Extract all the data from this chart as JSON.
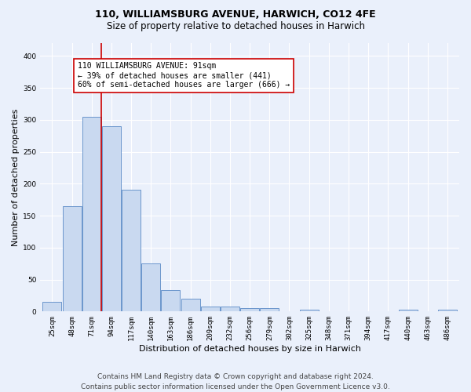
{
  "title": "110, WILLIAMSBURG AVENUE, HARWICH, CO12 4FE",
  "subtitle": "Size of property relative to detached houses in Harwich",
  "xlabel": "Distribution of detached houses by size in Harwich",
  "ylabel": "Number of detached properties",
  "bar_labels": [
    "25sqm",
    "48sqm",
    "71sqm",
    "94sqm",
    "117sqm",
    "140sqm",
    "163sqm",
    "186sqm",
    "209sqm",
    "232sqm",
    "256sqm",
    "279sqm",
    "302sqm",
    "325sqm",
    "348sqm",
    "371sqm",
    "394sqm",
    "417sqm",
    "440sqm",
    "463sqm",
    "486sqm"
  ],
  "bar_values": [
    15,
    165,
    305,
    290,
    190,
    75,
    33,
    20,
    8,
    8,
    5,
    5,
    0,
    3,
    0,
    0,
    0,
    0,
    3,
    0,
    3
  ],
  "bar_color": "#c9d9f0",
  "bar_edge_color": "#5a8ac6",
  "vline_color": "#cc0000",
  "vline_bin_index": 3,
  "annotation_text": "110 WILLIAMSBURG AVENUE: 91sqm\n← 39% of detached houses are smaller (441)\n60% of semi-detached houses are larger (666) →",
  "annotation_box_color": "#ffffff",
  "annotation_box_edge_color": "#cc0000",
  "ylim": [
    0,
    420
  ],
  "yticks": [
    0,
    50,
    100,
    150,
    200,
    250,
    300,
    350,
    400
  ],
  "footer": "Contains HM Land Registry data © Crown copyright and database right 2024.\nContains public sector information licensed under the Open Government Licence v3.0.",
  "bg_color": "#eaf0fb",
  "plot_bg_color": "#eaf0fb",
  "grid_color": "#ffffff",
  "title_fontsize": 9,
  "subtitle_fontsize": 8.5,
  "xlabel_fontsize": 8,
  "ylabel_fontsize": 8,
  "tick_fontsize": 6.5,
  "annotation_fontsize": 7,
  "footer_fontsize": 6.5
}
